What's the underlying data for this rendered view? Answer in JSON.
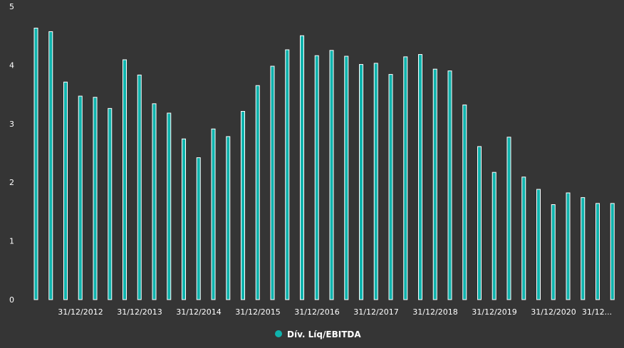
{
  "chart_data": {
    "type": "bar",
    "series": [
      {
        "name": "Dív. Líq/EBITDA",
        "values": [
          4.63,
          4.57,
          3.71,
          3.47,
          3.45,
          3.26,
          4.09,
          3.83,
          3.34,
          3.18,
          2.74,
          2.42,
          2.91,
          2.78,
          3.21,
          3.65,
          3.98,
          4.26,
          4.5,
          4.16,
          4.25,
          4.15,
          4.01,
          4.03,
          3.84,
          4.14,
          4.18,
          3.93,
          3.9,
          3.32,
          2.61,
          2.17,
          2.77,
          2.09,
          1.88,
          1.62,
          1.82,
          1.74,
          1.64,
          1.64
        ]
      }
    ],
    "x_tick_labels": [
      "31/12/2012",
      "31/12/2013",
      "31/12/2014",
      "31/12/2015",
      "31/12/2016",
      "31/12/2017",
      "31/12/2018",
      "31/12/2019",
      "31/12/2020",
      "31/12..."
    ],
    "y_ticks": [
      0,
      1,
      2,
      3,
      4,
      5
    ],
    "ylim": [
      0,
      5
    ],
    "legend_position": "bottom-center",
    "colors": {
      "bar_fill": "#0fb3ad",
      "bar_stroke": "#ffffff",
      "background": "#353535"
    }
  }
}
